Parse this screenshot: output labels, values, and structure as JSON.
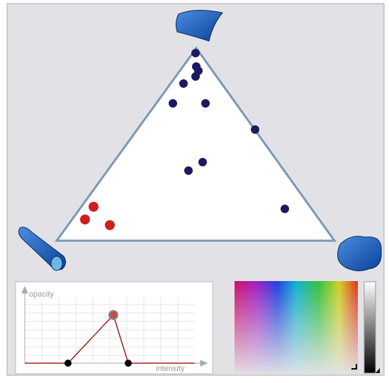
{
  "transfer_function": {
    "y_label": "opacity",
    "x_label": "intensity"
  }
}
